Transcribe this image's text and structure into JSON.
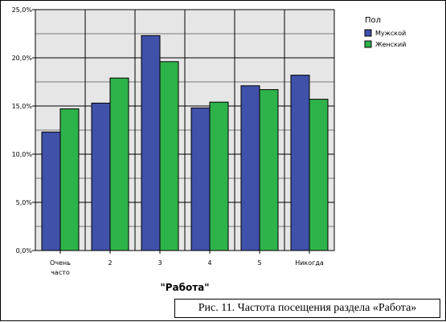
{
  "chart_data": {
    "type": "bar",
    "categories": [
      "Очень часто",
      "2",
      "3",
      "4",
      "5",
      "Никогда"
    ],
    "series": [
      {
        "name": "Мужской",
        "values": [
          12.3,
          15.3,
          22.3,
          14.8,
          17.1,
          18.2
        ],
        "color": "#3f51a8"
      },
      {
        "name": "Женский",
        "values": [
          14.7,
          17.9,
          19.6,
          15.4,
          16.7,
          15.7
        ],
        "color": "#2eb24a"
      }
    ],
    "xlabel": "\"Работа\"",
    "ylabel": "",
    "ylim": [
      0,
      25
    ],
    "yticks": [
      "0,0%",
      "5,0%",
      "10,0%",
      "15,0%",
      "20,0%",
      "25,0%"
    ],
    "legend_title": "Пол",
    "legend_position": "top-right",
    "grid": true,
    "plot_background": "#e6e6e6"
  },
  "caption": "Рис. 11. Частота посещения раздела «Работа»"
}
